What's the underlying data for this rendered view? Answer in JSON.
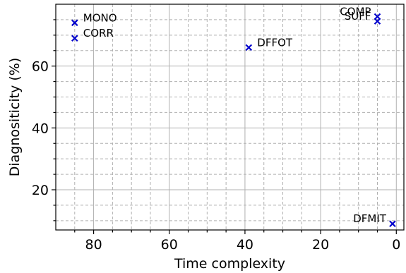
{
  "chart_data": {
    "type": "scatter",
    "xlabel": "Time complexity",
    "ylabel": "Diagnositicity (%)",
    "xlim": [
      90,
      -2
    ],
    "ylim": [
      7,
      80
    ],
    "x_inverted": true,
    "x_ticks": [
      80,
      60,
      40,
      20,
      0
    ],
    "y_ticks": [
      20,
      40,
      60
    ],
    "x_minor_ticks": [
      85,
      75,
      70,
      65,
      55,
      50,
      45,
      35,
      30,
      25,
      15,
      10,
      5
    ],
    "y_minor_ticks": [
      10,
      15,
      25,
      30,
      35,
      45,
      50,
      55,
      65,
      70,
      75
    ],
    "grid": true,
    "marker": "x",
    "color": "#0000cc",
    "points": [
      {
        "label": "MONO",
        "x": 85,
        "y": 74,
        "label_side": "right"
      },
      {
        "label": "CORR",
        "x": 85,
        "y": 69,
        "label_side": "right"
      },
      {
        "label": "DFFOT",
        "x": 39,
        "y": 66,
        "label_side": "right"
      },
      {
        "label": "COMP",
        "x": 5,
        "y": 76,
        "label_side": "left"
      },
      {
        "label": "SUFF",
        "x": 5,
        "y": 74.5,
        "label_side": "left"
      },
      {
        "label": "DFMIT",
        "x": 1,
        "y": 9,
        "label_side": "left"
      }
    ]
  }
}
